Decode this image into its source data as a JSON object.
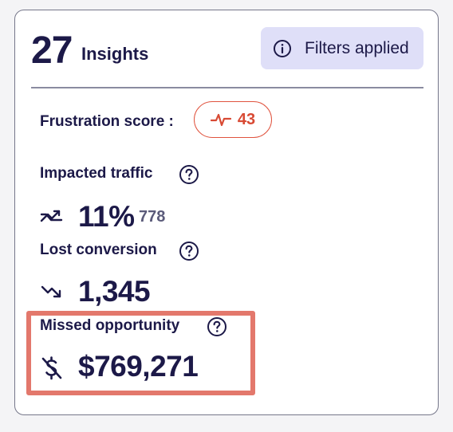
{
  "header": {
    "count": "27",
    "count_label": "Insights",
    "filters_label": "Filters applied",
    "filters_icon": "info-circle-icon"
  },
  "frustration": {
    "label": "Frustration score :",
    "score": "43",
    "icon": "pulse-icon",
    "color": "#d84a34"
  },
  "impacted_traffic": {
    "label": "Impacted traffic",
    "value": "11%",
    "sub_value": "778",
    "icon": "trend-zigzag-up-icon"
  },
  "lost_conversion": {
    "label": "Lost conversion",
    "value": "1,345",
    "icon": "trend-down-icon"
  },
  "missed_opportunity": {
    "label": "Missed opportunity",
    "value": "$769,271",
    "icon": "dollar-off-icon",
    "highlight_color": "#e3786c"
  },
  "colors": {
    "text": "#1c1948",
    "filters_bg": "#dfdff8",
    "border": "#76778a"
  }
}
